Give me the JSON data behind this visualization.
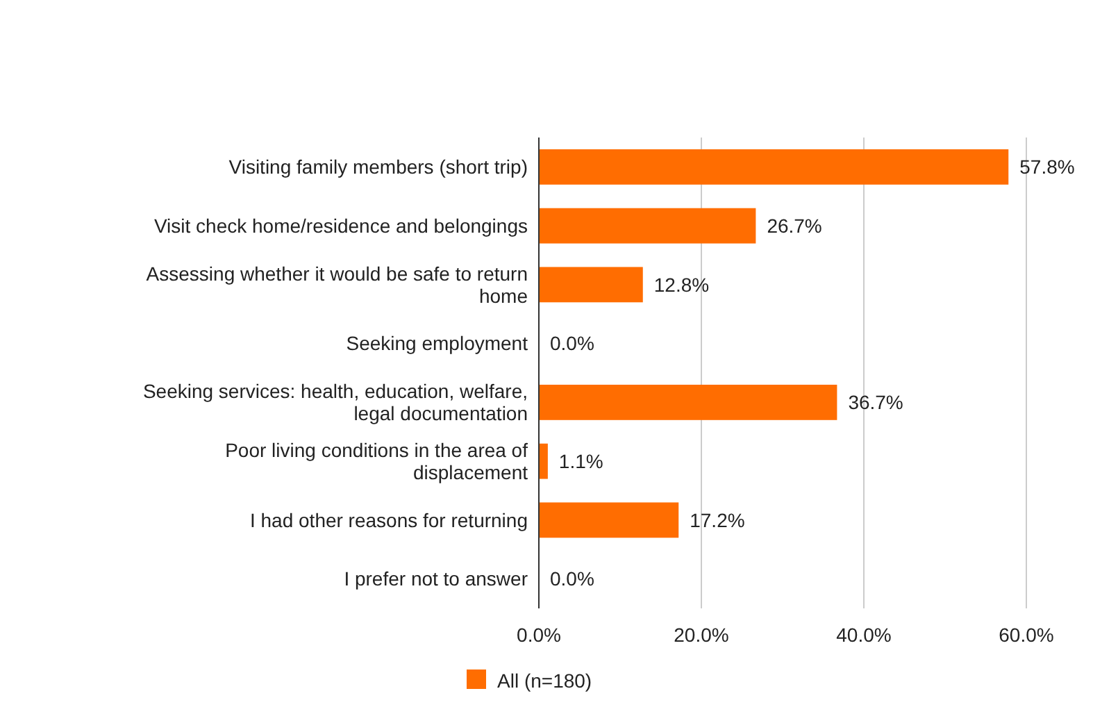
{
  "chart_data": {
    "type": "bar",
    "orientation": "horizontal",
    "categories": [
      "Visiting family members (short trip)",
      "Visit check home/residence and belongings",
      "Assessing whether it would be safe to return home",
      "Seeking employment",
      "Seeking services: health, education, welfare, legal documentation",
      "Poor living conditions in the area of displacement",
      "I had other reasons for returning",
      "I prefer not to answer"
    ],
    "series": [
      {
        "name": "All (n=180)",
        "color": "#ff6d01",
        "values": [
          57.8,
          26.7,
          12.8,
          0.0,
          36.7,
          1.1,
          17.2,
          0.0
        ],
        "value_labels": [
          "57.8%",
          "26.7%",
          "12.8%",
          "0.0%",
          "36.7%",
          "1.1%",
          "17.2%",
          "0.0%"
        ]
      }
    ],
    "xlim": [
      0,
      60
    ],
    "xticks": [
      {
        "value": 0,
        "label": "0.0%"
      },
      {
        "value": 20,
        "label": "20.0%"
      },
      {
        "value": 40,
        "label": "40.0%"
      },
      {
        "value": 60,
        "label": "60.0%"
      }
    ],
    "grid": "x",
    "legend": "bottom"
  }
}
